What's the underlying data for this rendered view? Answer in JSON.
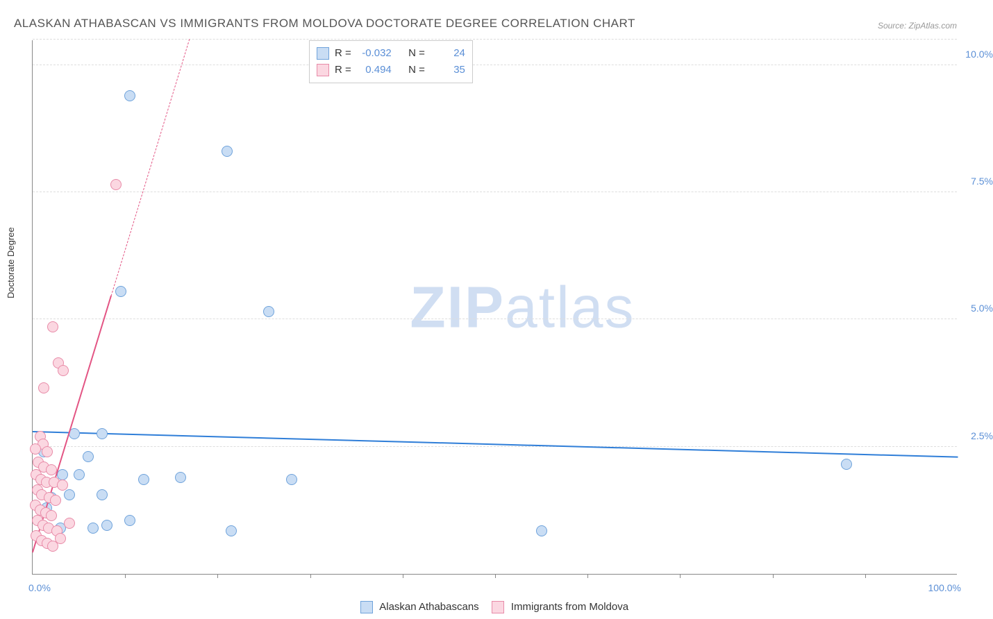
{
  "title": "ALASKAN ATHABASCAN VS IMMIGRANTS FROM MOLDOVA DOCTORATE DEGREE CORRELATION CHART",
  "source": "Source: ZipAtlas.com",
  "watermark": {
    "bold": "ZIP",
    "light": "atlas"
  },
  "ylabel": "Doctorate Degree",
  "chart": {
    "type": "scatter",
    "xlim": [
      0,
      100
    ],
    "ylim": [
      0,
      10.5
    ],
    "background_color": "#ffffff",
    "grid_color": "#dddddd",
    "axis_color": "#888888",
    "marker_radius": 8,
    "marker_stroke_width": 1.2,
    "yticks": [
      {
        "v": 2.5,
        "label": "2.5%"
      },
      {
        "v": 5.0,
        "label": "5.0%"
      },
      {
        "v": 7.5,
        "label": "7.5%"
      },
      {
        "v": 10.0,
        "label": "10.0%"
      },
      {
        "v": 10.5,
        "label": ""
      }
    ],
    "xticks_minor": [
      10,
      20,
      30,
      40,
      50,
      60,
      70,
      80,
      90
    ],
    "xtick_labels": [
      {
        "v": 0,
        "label": "0.0%",
        "cls": "left"
      },
      {
        "v": 100,
        "label": "100.0%",
        "cls": "right"
      }
    ],
    "series": [
      {
        "name": "Alaskan Athabascans",
        "color_fill": "#c9ddf4",
        "color_stroke": "#6fa3db",
        "R": "-0.032",
        "N": "24",
        "trend": {
          "x1": 0,
          "y1": 2.78,
          "x2": 100,
          "y2": 2.28,
          "color": "#2f7ed8",
          "width": 2.2
        },
        "points": [
          {
            "x": 10.5,
            "y": 9.4
          },
          {
            "x": 21.0,
            "y": 8.3
          },
          {
            "x": 9.5,
            "y": 5.55
          },
          {
            "x": 25.5,
            "y": 5.15
          },
          {
            "x": 4.5,
            "y": 2.75
          },
          {
            "x": 7.5,
            "y": 2.75
          },
          {
            "x": 6.0,
            "y": 2.3
          },
          {
            "x": 88.0,
            "y": 2.15
          },
          {
            "x": 3.2,
            "y": 1.95
          },
          {
            "x": 5.0,
            "y": 1.95
          },
          {
            "x": 12.0,
            "y": 1.85
          },
          {
            "x": 16.0,
            "y": 1.9
          },
          {
            "x": 28.0,
            "y": 1.85
          },
          {
            "x": 4.0,
            "y": 1.55
          },
          {
            "x": 7.5,
            "y": 1.55
          },
          {
            "x": 2.0,
            "y": 1.5
          },
          {
            "x": 10.5,
            "y": 1.05
          },
          {
            "x": 55.0,
            "y": 0.85
          },
          {
            "x": 3.0,
            "y": 0.9
          },
          {
            "x": 6.5,
            "y": 0.9
          },
          {
            "x": 8.0,
            "y": 0.95
          },
          {
            "x": 21.5,
            "y": 0.85
          },
          {
            "x": 1.2,
            "y": 2.4
          },
          {
            "x": 1.5,
            "y": 1.3
          }
        ]
      },
      {
        "name": "Immigrants from Moldova",
        "color_fill": "#fbd7e1",
        "color_stroke": "#e88ba8",
        "R": "0.494",
        "N": "35",
        "trend": {
          "x1": 0,
          "y1": 0.4,
          "x2": 8.5,
          "y2": 5.45,
          "x3": 20,
          "y3": 12.3,
          "color": "#e35584",
          "width": 2.2
        },
        "points": [
          {
            "x": 9.0,
            "y": 7.65
          },
          {
            "x": 2.2,
            "y": 4.85
          },
          {
            "x": 2.8,
            "y": 4.15
          },
          {
            "x": 3.3,
            "y": 4.0
          },
          {
            "x": 1.2,
            "y": 3.65
          },
          {
            "x": 0.8,
            "y": 2.7
          },
          {
            "x": 1.1,
            "y": 2.55
          },
          {
            "x": 0.3,
            "y": 2.45
          },
          {
            "x": 1.6,
            "y": 2.4
          },
          {
            "x": 0.6,
            "y": 2.2
          },
          {
            "x": 1.2,
            "y": 2.1
          },
          {
            "x": 2.0,
            "y": 2.05
          },
          {
            "x": 0.4,
            "y": 1.95
          },
          {
            "x": 0.9,
            "y": 1.85
          },
          {
            "x": 1.5,
            "y": 1.8
          },
          {
            "x": 2.3,
            "y": 1.8
          },
          {
            "x": 3.2,
            "y": 1.75
          },
          {
            "x": 0.5,
            "y": 1.65
          },
          {
            "x": 1.0,
            "y": 1.55
          },
          {
            "x": 1.8,
            "y": 1.5
          },
          {
            "x": 2.5,
            "y": 1.45
          },
          {
            "x": 0.3,
            "y": 1.35
          },
          {
            "x": 0.8,
            "y": 1.25
          },
          {
            "x": 1.4,
            "y": 1.2
          },
          {
            "x": 2.0,
            "y": 1.15
          },
          {
            "x": 0.5,
            "y": 1.05
          },
          {
            "x": 1.1,
            "y": 0.95
          },
          {
            "x": 1.7,
            "y": 0.9
          },
          {
            "x": 2.6,
            "y": 0.85
          },
          {
            "x": 0.4,
            "y": 0.75
          },
          {
            "x": 1.0,
            "y": 0.65
          },
          {
            "x": 1.6,
            "y": 0.6
          },
          {
            "x": 2.2,
            "y": 0.55
          },
          {
            "x": 3.0,
            "y": 0.7
          },
          {
            "x": 4.0,
            "y": 1.0
          }
        ]
      }
    ]
  },
  "legend_top_labels": {
    "R": "R =",
    "N": "N ="
  }
}
